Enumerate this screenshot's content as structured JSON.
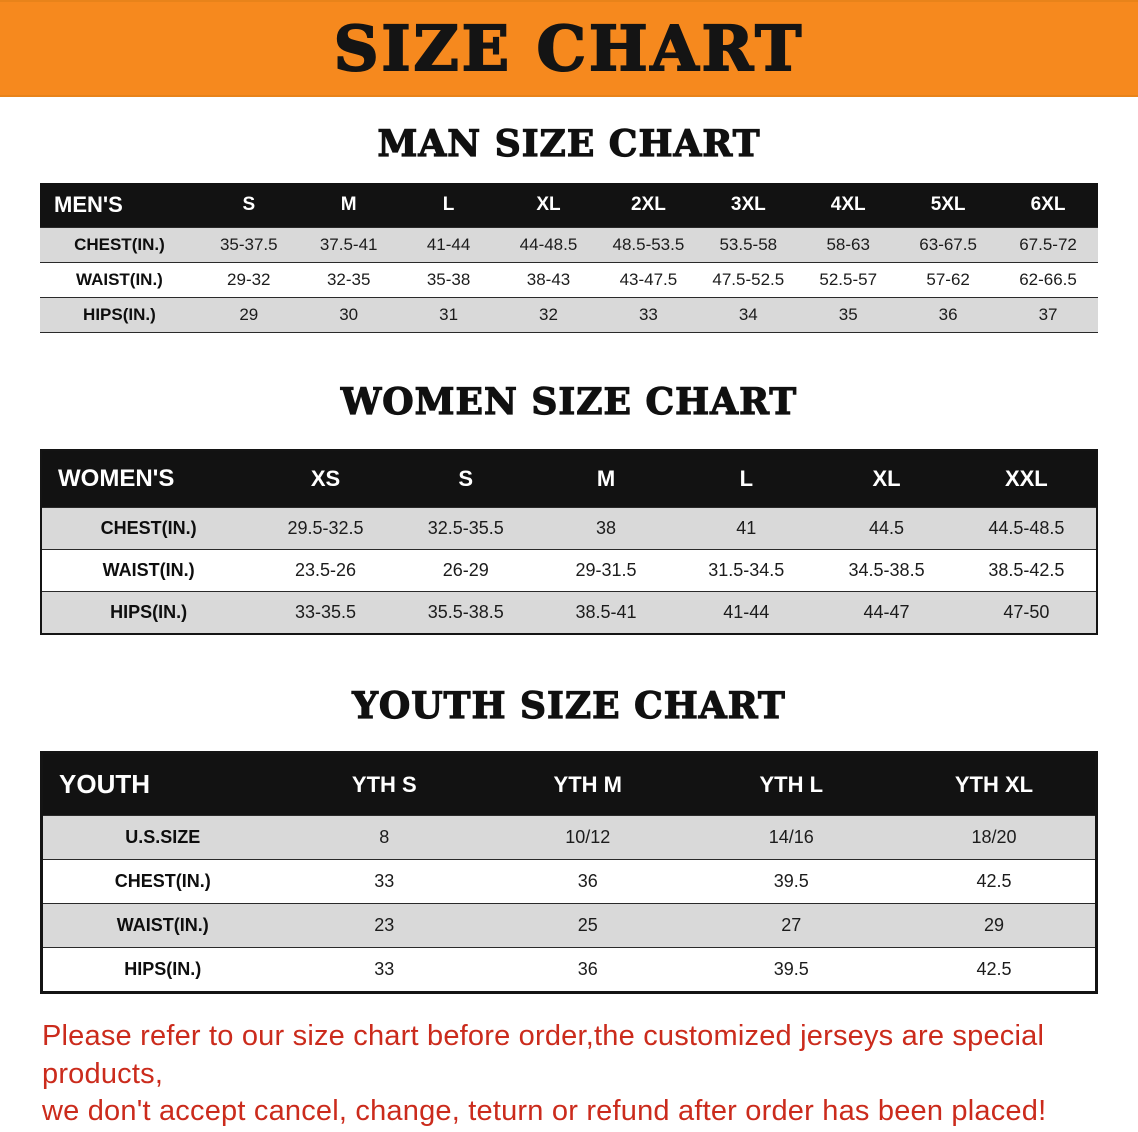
{
  "banner": {
    "title": "SIZE CHART"
  },
  "colors": {
    "banner_bg": "#F6891E",
    "table_header_bg": "#121212",
    "row_stripe": "#d9d9d9",
    "notice_red": "#cb2b1c"
  },
  "sections": [
    {
      "heading": "MAN SIZE CHART",
      "table": {
        "header": [
          "MEN'S",
          "S",
          "M",
          "L",
          "XL",
          "2XL",
          "3XL",
          "4XL",
          "5XL",
          "6XL"
        ],
        "rows": [
          [
            "CHEST(IN.)",
            "35-37.5",
            "37.5-41",
            "41-44",
            "44-48.5",
            "48.5-53.5",
            "53.5-58",
            "58-63",
            "63-67.5",
            "67.5-72"
          ],
          [
            "WAIST(IN.)",
            "29-32",
            "32-35",
            "35-38",
            "38-43",
            "43-47.5",
            "47.5-52.5",
            "52.5-57",
            "57-62",
            "62-66.5"
          ],
          [
            "HIPS(IN.)",
            "29",
            "30",
            "31",
            "32",
            "33",
            "34",
            "35",
            "36",
            "37"
          ]
        ]
      }
    },
    {
      "heading": "WOMEN SIZE CHART",
      "table": {
        "header": [
          "WOMEN'S",
          "XS",
          "S",
          "M",
          "L",
          "XL",
          "XXL"
        ],
        "rows": [
          [
            "CHEST(IN.)",
            "29.5-32.5",
            "32.5-35.5",
            "38",
            "41",
            "44.5",
            "44.5-48.5"
          ],
          [
            "WAIST(IN.)",
            "23.5-26",
            "26-29",
            "29-31.5",
            "31.5-34.5",
            "34.5-38.5",
            "38.5-42.5"
          ],
          [
            "HIPS(IN.)",
            "33-35.5",
            "35.5-38.5",
            "38.5-41",
            "41-44",
            "44-47",
            "47-50"
          ]
        ]
      }
    },
    {
      "heading": "YOUTH SIZE CHART",
      "table": {
        "header": [
          "YOUTH",
          "YTH S",
          "YTH M",
          "YTH L",
          "YTH XL"
        ],
        "rows": [
          [
            "U.S.SIZE",
            "8",
            "10/12",
            "14/16",
            "18/20"
          ],
          [
            "CHEST(IN.)",
            "33",
            "36",
            "39.5",
            "42.5"
          ],
          [
            "WAIST(IN.)",
            "23",
            "25",
            "27",
            "29"
          ],
          [
            "HIPS(IN.)",
            "33",
            "36",
            "39.5",
            "42.5"
          ]
        ]
      }
    }
  ],
  "notice": {
    "line1": "Please refer to our size chart before order,the customized jerseys are special products,",
    "line2": "we don't accept cancel, change, teturn or refund after order has been placed!"
  }
}
